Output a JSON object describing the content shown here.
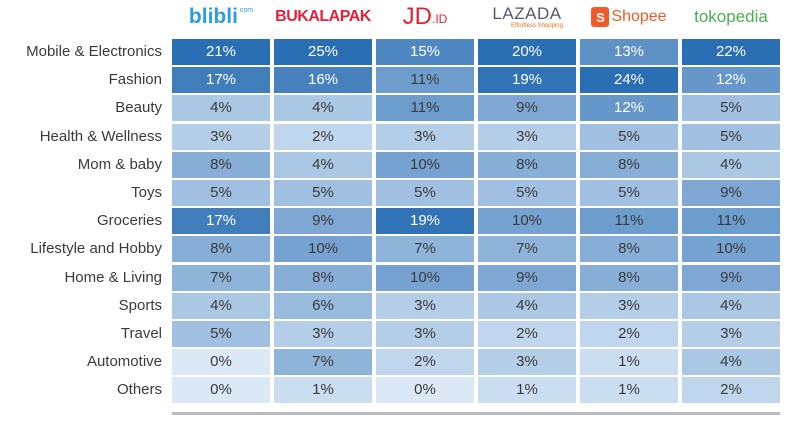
{
  "chart_data": {
    "type": "table",
    "columns": [
      {
        "name": "blibli",
        "logo_text": "blibli",
        "logo_sup": ".com",
        "color": "#2f9be0"
      },
      {
        "name": "Bukalapak",
        "logo_text": "BUKALAPAK",
        "color": "#e1223a"
      },
      {
        "name": "JD.ID",
        "logo_text": "JD",
        "logo_sub": ".ID",
        "color": "#e12431"
      },
      {
        "name": "Lazada",
        "logo_text": "LAZADA",
        "logo_sub": "Effortless Shopping",
        "color": "#555a66"
      },
      {
        "name": "Shopee",
        "logo_text": "Shopee",
        "color": "#f05a2a"
      },
      {
        "name": "tokopedia",
        "logo_text": "tokopedia",
        "color": "#4caf50"
      }
    ],
    "rows": [
      {
        "label": "Mobile & Electronics",
        "values": [
          "21%",
          "25%",
          "15%",
          "20%",
          "13%",
          "22%"
        ]
      },
      {
        "label": "Fashion",
        "values": [
          "17%",
          "16%",
          "11%",
          "19%",
          "24%",
          "12%"
        ]
      },
      {
        "label": "Beauty",
        "values": [
          "4%",
          "4%",
          "11%",
          "9%",
          "12%",
          "5%"
        ]
      },
      {
        "label": "Health & Wellness",
        "values": [
          "3%",
          "2%",
          "3%",
          "3%",
          "5%",
          "5%"
        ]
      },
      {
        "label": "Mom & baby",
        "values": [
          "8%",
          "4%",
          "10%",
          "8%",
          "8%",
          "4%"
        ]
      },
      {
        "label": "Toys",
        "values": [
          "5%",
          "5%",
          "5%",
          "5%",
          "5%",
          "9%"
        ]
      },
      {
        "label": "Groceries",
        "values": [
          "17%",
          "9%",
          "19%",
          "10%",
          "11%",
          "11%"
        ]
      },
      {
        "label": "Lifestyle and Hobby",
        "values": [
          "8%",
          "10%",
          "7%",
          "7%",
          "8%",
          "10%"
        ]
      },
      {
        "label": "Home & Living",
        "values": [
          "7%",
          "8%",
          "10%",
          "9%",
          "8%",
          "9%"
        ]
      },
      {
        "label": "Sports",
        "values": [
          "4%",
          "6%",
          "3%",
          "4%",
          "3%",
          "4%"
        ]
      },
      {
        "label": "Travel",
        "values": [
          "5%",
          "3%",
          "3%",
          "2%",
          "2%",
          "3%"
        ]
      },
      {
        "label": "Automotive",
        "values": [
          "0%",
          "7%",
          "2%",
          "3%",
          "1%",
          "4%"
        ]
      },
      {
        "label": "Others",
        "values": [
          "0%",
          "1%",
          "0%",
          "1%",
          "1%",
          "2%"
        ]
      }
    ],
    "color_scale": {
      "dark": "#2a6eb3",
      "light": "#dbe9f7",
      "text_dark": "#ffffff",
      "text_light": "#3a3a3a"
    }
  }
}
